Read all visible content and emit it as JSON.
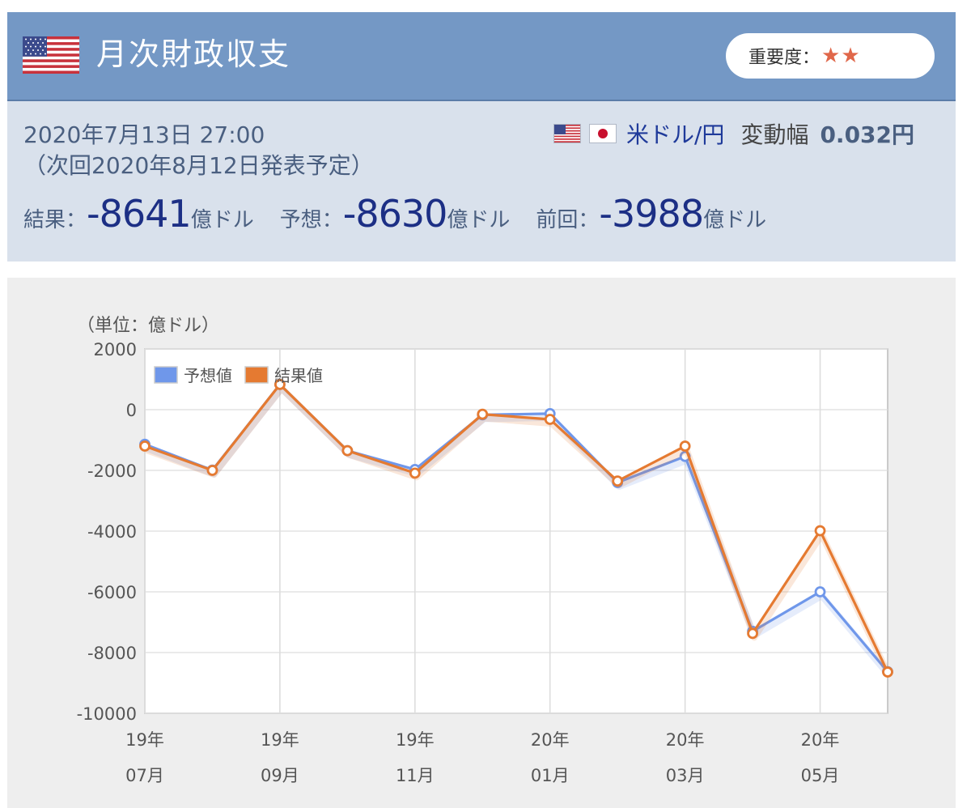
{
  "header": {
    "title": "月次財政収支",
    "importance_label": "重要度：",
    "importance_stars": "★★"
  },
  "info": {
    "datetime": "2020年7月13日 27:00",
    "next_release": "（次回2020年8月12日発表予定）",
    "pair": "米ドル/円",
    "range_label": "変動幅",
    "range_value": "0.032円",
    "result_label": "結果：",
    "result_value": "-8641",
    "forecast_label": "予想：",
    "forecast_value": "-8630",
    "previous_label": "前回：",
    "previous_value": "-3988",
    "unit": "億ドル"
  },
  "colors": {
    "header_bg": "#7498c5",
    "info_bg": "#d9e1ec",
    "forecast": "#6f97ea",
    "result": "#e57a31"
  },
  "chart_data": {
    "type": "line",
    "unit_label": "（単位：億ドル）",
    "x": [
      "19/07",
      "19/08",
      "19/09",
      "19/10",
      "19/11",
      "19/12",
      "20/01",
      "20/02",
      "20/03",
      "20/04",
      "20/05",
      "20/06"
    ],
    "x_tick_labels": [
      {
        "index": 0,
        "line1": "19年",
        "line2": "07月"
      },
      {
        "index": 2,
        "line1": "19年",
        "line2": "09月"
      },
      {
        "index": 4,
        "line1": "19年",
        "line2": "11月"
      },
      {
        "index": 6,
        "line1": "20年",
        "line2": "01月"
      },
      {
        "index": 8,
        "line1": "20年",
        "line2": "03月"
      },
      {
        "index": 10,
        "line1": "20年",
        "line2": "05月"
      }
    ],
    "y_ticks": [
      2000,
      0,
      -2000,
      -4000,
      -6000,
      -8000,
      -10000
    ],
    "ylim": [
      -10000,
      2000
    ],
    "grid": true,
    "legend_position": "top-left",
    "series": [
      {
        "name": "予想値",
        "color": "#6f97ea",
        "values": [
          -1140,
          -1990,
          830,
          -1350,
          -1970,
          -170,
          -130,
          -2400,
          -1540,
          -7300,
          -6000,
          -8630
        ]
      },
      {
        "name": "結果値",
        "color": "#e57a31",
        "values": [
          -1200,
          -2000,
          830,
          -1350,
          -2090,
          -150,
          -320,
          -2350,
          -1200,
          -7370,
          -3988,
          -8641
        ]
      }
    ]
  }
}
